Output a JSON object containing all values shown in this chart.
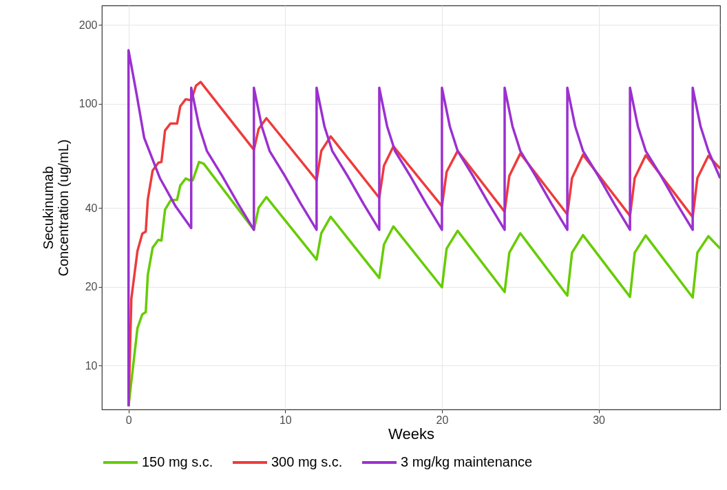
{
  "chart_data": {
    "type": "line",
    "xlabel": "Weeks",
    "ylabel": "Secukinumab Concentration (ug/mL)",
    "xlim": [
      -1.7,
      37.75
    ],
    "xticks": [
      0,
      10,
      20,
      30
    ],
    "ylim": [
      6.8,
      237
    ],
    "yticks": [
      10,
      20,
      40,
      100,
      200
    ],
    "log": "y",
    "grid": true,
    "legend": "bottom",
    "series": [
      {
        "name": "150 mg s.c.",
        "color": "#66cc00",
        "x": [
          0,
          0.57,
          0.88,
          1.1,
          1.23,
          1.54,
          1.9,
          2.1,
          2.33,
          2.68,
          3.1,
          3.3,
          3.65,
          3.9,
          4.1,
          4.5,
          4.8,
          8,
          8.3,
          8.8,
          12,
          12.3,
          12.9,
          16,
          16.3,
          16.9,
          20,
          20.3,
          21,
          24,
          24.3,
          25,
          28,
          28.3,
          29,
          32,
          32.3,
          33,
          36,
          36.3,
          37,
          37.75
        ],
        "values": [
          7,
          13.9,
          15.7,
          16,
          22.2,
          28.2,
          30.2,
          30,
          39.4,
          42.7,
          43,
          48.7,
          51.8,
          51,
          51,
          59.9,
          59,
          33,
          40,
          44,
          25.4,
          32,
          37,
          21.6,
          29,
          34,
          19.9,
          28,
          32.7,
          19.1,
          27,
          32,
          18.5,
          27,
          31.5,
          18.3,
          27,
          31.4,
          18.2,
          27,
          31.2,
          28
        ]
      },
      {
        "name": "300 mg s.c.",
        "color": "#ee3b3b",
        "x": [
          0,
          0.18,
          0.57,
          0.88,
          1.1,
          1.23,
          1.54,
          1.9,
          2.1,
          2.33,
          2.68,
          3.1,
          3.3,
          3.65,
          4,
          4.3,
          4.6,
          8,
          8.3,
          8.8,
          12,
          12.3,
          12.9,
          16,
          16.3,
          16.9,
          20,
          20.3,
          21,
          24,
          24.3,
          25,
          28,
          28.3,
          29,
          32,
          32.3,
          33,
          36,
          36.3,
          37,
          37.75
        ],
        "values": [
          7,
          18,
          27.4,
          31.9,
          32.5,
          43.1,
          55.6,
          59.5,
          59.9,
          79,
          84,
          84,
          97.7,
          104,
          103,
          117,
          121,
          66.7,
          80,
          88,
          51,
          66,
          75,
          43.7,
          58,
          68.7,
          40.6,
          55,
          66,
          38.7,
          53,
          64.5,
          37.8,
          52,
          63.8,
          37.3,
          52,
          63.5,
          36.9,
          52,
          63.2,
          56.6
        ]
      },
      {
        "name": "3 mg/kg maintenance",
        "color": "#9b30d0",
        "x": [
          0,
          0,
          0.5,
          1,
          2,
          3,
          4,
          4,
          4.5,
          5,
          6,
          7,
          8,
          8,
          8.5,
          9,
          10,
          11,
          12,
          12,
          12.5,
          13,
          14,
          15,
          16,
          16,
          16.5,
          17,
          18,
          19,
          20,
          20,
          20.5,
          21,
          22,
          23,
          24,
          24,
          24.5,
          25,
          26,
          27,
          28,
          28,
          28.5,
          29,
          30,
          31,
          32,
          32,
          32.5,
          33,
          34,
          35,
          36,
          36,
          36.5,
          37,
          37.75
        ],
        "values": [
          7,
          160,
          110,
          74,
          52,
          40.6,
          33.5,
          115,
          82,
          66,
          52.7,
          41.4,
          33,
          115,
          82,
          66,
          52.7,
          41.4,
          33,
          115,
          82,
          66,
          52.7,
          41.4,
          33,
          115,
          82,
          66,
          52.7,
          41.4,
          33,
          115,
          82,
          66,
          52.7,
          41.4,
          33,
          115,
          82,
          66,
          52.7,
          41.4,
          33,
          115,
          82,
          66,
          52.7,
          41.4,
          33,
          115,
          82,
          66,
          52.7,
          41.4,
          33,
          115,
          82,
          66,
          52
        ]
      }
    ]
  }
}
